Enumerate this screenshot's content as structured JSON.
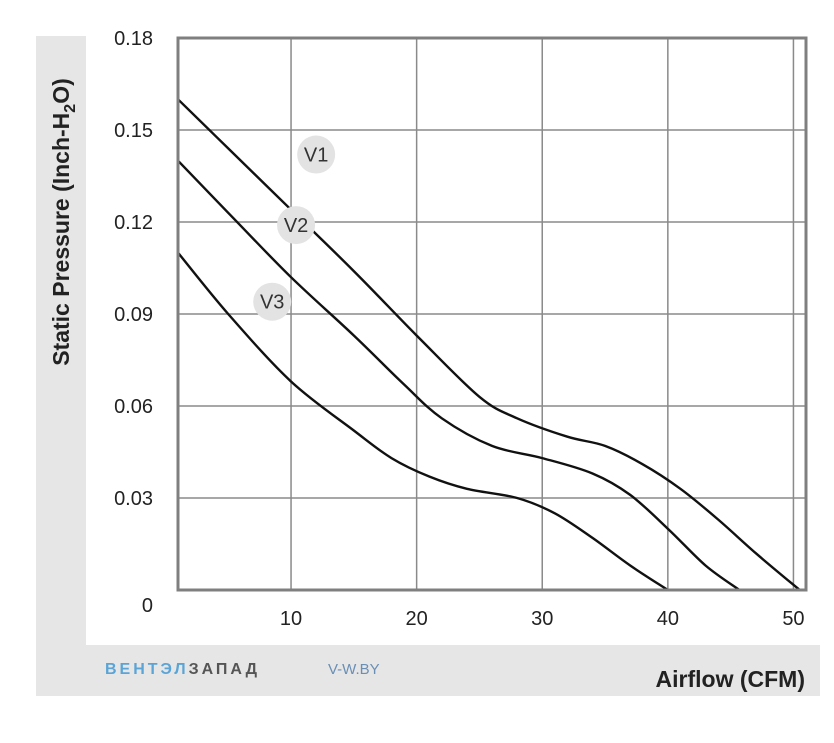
{
  "chart_data": {
    "type": "line",
    "xlabel": "Airflow (CFM)",
    "ylabel": "Static Pressure (Inch-H",
    "ylabel_sub": "2",
    "ylabel_end": "O)",
    "xlim": [
      1,
      51
    ],
    "ylim": [
      0,
      0.18
    ],
    "x_ticks": [
      10,
      20,
      30,
      40,
      50
    ],
    "y_ticks": [
      0,
      0.03,
      0.06,
      0.09,
      0.12,
      0.15,
      0.18
    ],
    "x_tick_labels": [
      "10",
      "20",
      "30",
      "40",
      "50"
    ],
    "y_tick_labels": [
      "0",
      "0.03",
      "0.06",
      "0.09",
      "0.12",
      "0.15",
      "0.18"
    ],
    "grid": true,
    "series": [
      {
        "name": "V1",
        "x": [
          1,
          5,
          10,
          15,
          20,
          25,
          28,
          32,
          35,
          38,
          41,
          44,
          47,
          50.5
        ],
        "y": [
          0.16,
          0.144,
          0.124,
          0.104,
          0.083,
          0.063,
          0.056,
          0.05,
          0.047,
          0.041,
          0.033,
          0.023,
          0.012,
          0.0
        ]
      },
      {
        "name": "V2",
        "x": [
          1,
          5,
          10,
          15,
          19,
          22,
          26,
          30,
          34,
          37,
          40,
          43,
          45.7
        ],
        "y": [
          0.14,
          0.123,
          0.102,
          0.083,
          0.067,
          0.056,
          0.047,
          0.043,
          0.038,
          0.031,
          0.02,
          0.008,
          0.0
        ]
      },
      {
        "name": "V3",
        "x": [
          1,
          5,
          10,
          15,
          18,
          21,
          24,
          28,
          31,
          34,
          37,
          40
        ],
        "y": [
          0.11,
          0.09,
          0.068,
          0.052,
          0.043,
          0.037,
          0.033,
          0.03,
          0.025,
          0.017,
          0.008,
          0.0
        ]
      }
    ],
    "annotations": [
      {
        "text": "V1",
        "x": 12,
        "y": 0.142
      },
      {
        "text": "V2",
        "x": 10.4,
        "y": 0.119
      },
      {
        "text": "V3",
        "x": 8.5,
        "y": 0.094
      }
    ]
  },
  "branding": {
    "name_part1": "ВЕНТЭЛ",
    "name_part2": "ЗАПАД",
    "url": "V-W.BY"
  },
  "colors": {
    "frame_bg": "#e6e6e6",
    "plot_border": "#7f7f7f",
    "grid": "#8a8a8a",
    "curve": "#111111",
    "brand_blue": "#5ba4d6",
    "brand_gray": "#555555",
    "label_circle": "#e3e3e3"
  }
}
